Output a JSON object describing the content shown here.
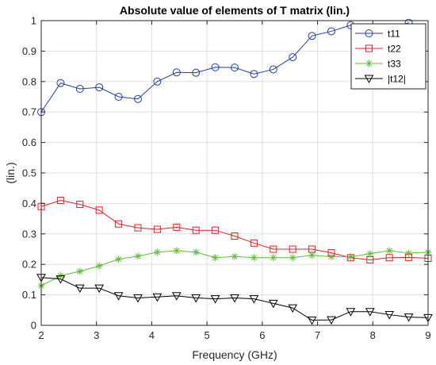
{
  "chart_data": {
    "type": "line",
    "title": "Absolute value of elements of T matrix (lin.)",
    "xlabel": "Frequency (GHz)",
    "ylabel": "(lin.)",
    "xlim": [
      2,
      9
    ],
    "ylim": [
      0,
      1
    ],
    "xticks": [
      2,
      3,
      4,
      5,
      6,
      7,
      8,
      9
    ],
    "yticks": [
      0,
      0.1,
      0.2,
      0.3,
      0.4,
      0.5,
      0.6,
      0.7,
      0.8,
      0.9,
      1
    ],
    "grid": true,
    "legend_position": "top-right",
    "x": [
      2.0,
      2.35,
      2.7,
      3.05,
      3.4,
      3.75,
      4.1,
      4.45,
      4.8,
      5.15,
      5.5,
      5.85,
      6.2,
      6.55,
      6.9,
      7.25,
      7.6,
      7.95,
      8.3,
      8.65,
      9.0
    ],
    "series": [
      {
        "name": "t11",
        "color": "#1f3f9f",
        "marker": "circle",
        "values": [
          0.7,
          0.795,
          0.776,
          0.781,
          0.75,
          0.743,
          0.8,
          0.83,
          0.829,
          0.847,
          0.846,
          0.825,
          0.84,
          0.88,
          0.95,
          0.965,
          0.985,
          0.978,
          0.975,
          0.993,
          null
        ]
      },
      {
        "name": "t22",
        "color": "#e02020",
        "marker": "square",
        "values": [
          0.39,
          0.41,
          0.397,
          0.378,
          0.333,
          0.32,
          0.315,
          0.322,
          0.312,
          0.312,
          0.293,
          0.27,
          0.25,
          0.25,
          0.25,
          0.238,
          0.222,
          0.215,
          0.222,
          0.223,
          0.22
        ]
      },
      {
        "name": "t33",
        "color": "#5dbb3a",
        "marker": "asterisk",
        "values": [
          0.13,
          0.163,
          0.177,
          0.195,
          0.217,
          0.227,
          0.24,
          0.245,
          0.24,
          0.222,
          0.226,
          0.222,
          0.222,
          0.222,
          0.23,
          0.225,
          0.225,
          0.235,
          0.245,
          0.237,
          0.24
        ]
      },
      {
        "name": "|t12|",
        "color": "#000000",
        "marker": "triangle-down",
        "values": [
          0.157,
          0.152,
          0.122,
          0.122,
          0.097,
          0.09,
          0.093,
          0.097,
          0.09,
          0.087,
          0.09,
          0.087,
          0.072,
          0.057,
          0.017,
          0.018,
          0.045,
          0.045,
          0.035,
          0.027,
          0.025
        ]
      }
    ]
  }
}
